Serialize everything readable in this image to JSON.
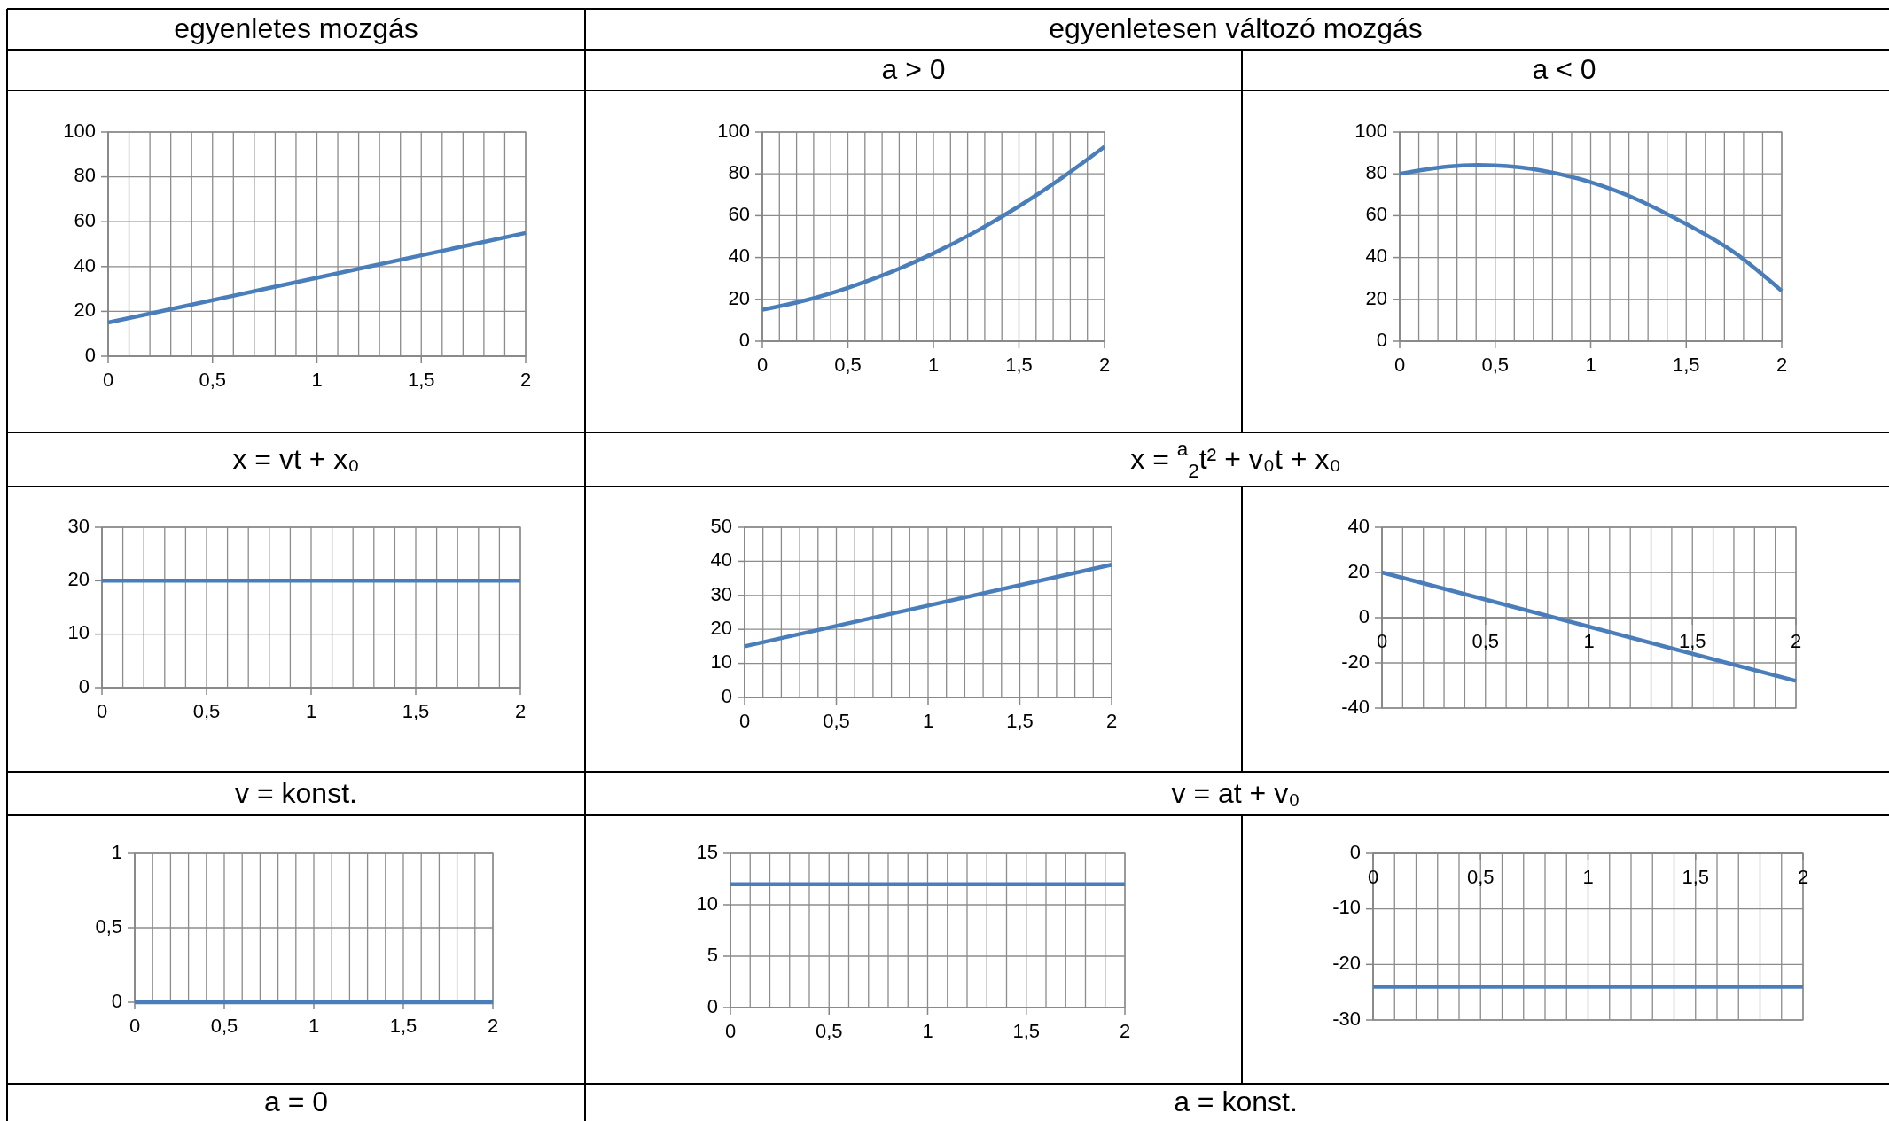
{
  "chart_data": [
    {
      "type": "line",
      "title": "egyenletes mozgás",
      "annotations": [
        "x = vt + x₀"
      ],
      "x": [
        0,
        0.5,
        1,
        1.5,
        2
      ],
      "series": [
        {
          "color": "#4a7ebb",
          "values": [
            15,
            25,
            35,
            45,
            55
          ]
        }
      ],
      "xlim": [
        0,
        2
      ],
      "xticks": [
        0,
        {
          "value": 0.1,
          "label": null
        },
        {
          "value": 0.2,
          "label": null
        },
        {
          "value": 0.3,
          "label": null
        },
        {
          "value": 0.4,
          "label": null
        },
        {
          "value": 0.5,
          "label": "0,5"
        },
        {
          "value": 0.6,
          "label": null
        },
        {
          "value": 0.7,
          "label": null
        },
        {
          "value": 0.8,
          "label": null
        },
        {
          "value": 0.9,
          "label": null
        },
        1,
        {
          "value": 1.1,
          "label": null
        },
        {
          "value": 1.2,
          "label": null
        },
        {
          "value": 1.3,
          "label": null
        },
        {
          "value": 1.4,
          "label": null
        },
        {
          "value": 1.5,
          "label": "1,5"
        },
        {
          "value": 1.6,
          "label": null
        },
        {
          "value": 1.7,
          "label": null
        },
        {
          "value": 1.8,
          "label": null
        },
        {
          "value": 1.9,
          "label": null
        },
        2
      ],
      "ylim": [
        0,
        100
      ],
      "yticks": [
        0,
        20,
        40,
        60,
        80,
        100
      ],
      "grid": true,
      "marker": "none",
      "line_style": "solid"
    },
    {
      "type": "line",
      "title": "a > 0",
      "annotations": [
        "egyenletesen változó mozgás",
        "x = $^{a}$$_{2}$t² + v₀t + x₀"
      ],
      "x": [
        0,
        0.25,
        0.5,
        0.75,
        1,
        1.25,
        1.5,
        1.75,
        2
      ],
      "series": [
        {
          "color": "#4a7ebb",
          "values": [
            15,
            19.5,
            25.5,
            33,
            42,
            52.5,
            64.5,
            78,
            93
          ]
        }
      ],
      "xlim": [
        0,
        2
      ],
      "xticks": [
        0,
        {
          "value": 0.1,
          "label": null
        },
        {
          "value": 0.2,
          "label": null
        },
        {
          "value": 0.3,
          "label": null
        },
        {
          "value": 0.4,
          "label": null
        },
        {
          "value": 0.5,
          "label": "0,5"
        },
        {
          "value": 0.6,
          "label": null
        },
        {
          "value": 0.7,
          "label": null
        },
        {
          "value": 0.8,
          "label": null
        },
        {
          "value": 0.9,
          "label": null
        },
        1,
        {
          "value": 1.1,
          "label": null
        },
        {
          "value": 1.2,
          "label": null
        },
        {
          "value": 1.3,
          "label": null
        },
        {
          "value": 1.4,
          "label": null
        },
        {
          "value": 1.5,
          "label": "1,5"
        },
        {
          "value": 1.6,
          "label": null
        },
        {
          "value": 1.7,
          "label": null
        },
        {
          "value": 1.8,
          "label": null
        },
        {
          "value": 1.9,
          "label": null
        },
        2
      ],
      "ylim": [
        0,
        100
      ],
      "yticks": [
        0,
        20,
        40,
        60,
        80,
        100
      ],
      "grid": true,
      "marker": "none",
      "line_style": "solid"
    },
    {
      "type": "line",
      "title": "a < 0",
      "x": [
        0,
        0.25,
        0.5,
        0.75,
        1,
        1.25,
        1.5,
        1.75,
        2
      ],
      "series": [
        {
          "color": "#4a7ebb",
          "values": [
            80,
            83.5,
            84,
            81.5,
            76,
            67.5,
            56,
            42.5,
            24
          ]
        }
      ],
      "xlim": [
        0,
        2
      ],
      "xticks": [
        0,
        {
          "value": 0.1,
          "label": null
        },
        {
          "value": 0.2,
          "label": null
        },
        {
          "value": 0.3,
          "label": null
        },
        {
          "value": 0.4,
          "label": null
        },
        {
          "value": 0.5,
          "label": "0,5"
        },
        {
          "value": 0.6,
          "label": null
        },
        {
          "value": 0.7,
          "label": null
        },
        {
          "value": 0.8,
          "label": null
        },
        {
          "value": 0.9,
          "label": null
        },
        1,
        {
          "value": 1.1,
          "label": null
        },
        {
          "value": 1.2,
          "label": null
        },
        {
          "value": 1.3,
          "label": null
        },
        {
          "value": 1.4,
          "label": null
        },
        {
          "value": 1.5,
          "label": "1,5"
        },
        {
          "value": 1.6,
          "label": null
        },
        {
          "value": 1.7,
          "label": null
        },
        {
          "value": 1.8,
          "label": null
        },
        {
          "value": 1.9,
          "label": null
        },
        2
      ],
      "ylim": [
        0,
        100
      ],
      "yticks": [
        0,
        20,
        40,
        60,
        80,
        100
      ],
      "grid": true,
      "marker": "none",
      "line_style": "solid"
    },
    {
      "type": "line",
      "annotations": [
        "v = konst."
      ],
      "x": [
        0,
        2
      ],
      "series": [
        {
          "color": "#4a7ebb",
          "values": [
            20,
            20
          ]
        }
      ],
      "xlim": [
        0,
        2
      ],
      "xticks": [
        0,
        {
          "value": 0.1,
          "label": null
        },
        {
          "value": 0.2,
          "label": null
        },
        {
          "value": 0.3,
          "label": null
        },
        {
          "value": 0.4,
          "label": null
        },
        {
          "value": 0.5,
          "label": "0,5"
        },
        {
          "value": 0.6,
          "label": null
        },
        {
          "value": 0.7,
          "label": null
        },
        {
          "value": 0.8,
          "label": null
        },
        {
          "value": 0.9,
          "label": null
        },
        1,
        {
          "value": 1.1,
          "label": null
        },
        {
          "value": 1.2,
          "label": null
        },
        {
          "value": 1.3,
          "label": null
        },
        {
          "value": 1.4,
          "label": null
        },
        {
          "value": 1.5,
          "label": "1,5"
        },
        {
          "value": 1.6,
          "label": null
        },
        {
          "value": 1.7,
          "label": null
        },
        {
          "value": 1.8,
          "label": null
        },
        {
          "value": 1.9,
          "label": null
        },
        2
      ],
      "ylim": [
        0,
        30
      ],
      "yticks": [
        0,
        10,
        20,
        30
      ],
      "grid": true,
      "marker": "none",
      "line_style": "solid"
    },
    {
      "type": "line",
      "annotations": [
        "v = at + v₀"
      ],
      "x": [
        0,
        2
      ],
      "series": [
        {
          "color": "#4a7ebb",
          "values": [
            15,
            39
          ]
        }
      ],
      "xlim": [
        0,
        2
      ],
      "xticks": [
        0,
        {
          "value": 0.1,
          "label": null
        },
        {
          "value": 0.2,
          "label": null
        },
        {
          "value": 0.3,
          "label": null
        },
        {
          "value": 0.4,
          "label": null
        },
        {
          "value": 0.5,
          "label": "0,5"
        },
        {
          "value": 0.6,
          "label": null
        },
        {
          "value": 0.7,
          "label": null
        },
        {
          "value": 0.8,
          "label": null
        },
        {
          "value": 0.9,
          "label": null
        },
        1,
        {
          "value": 1.1,
          "label": null
        },
        {
          "value": 1.2,
          "label": null
        },
        {
          "value": 1.3,
          "label": null
        },
        {
          "value": 1.4,
          "label": null
        },
        {
          "value": 1.5,
          "label": "1,5"
        },
        {
          "value": 1.6,
          "label": null
        },
        {
          "value": 1.7,
          "label": null
        },
        {
          "value": 1.8,
          "label": null
        },
        {
          "value": 1.9,
          "label": null
        },
        2
      ],
      "ylim": [
        0,
        50
      ],
      "yticks": [
        0,
        10,
        20,
        30,
        40,
        50
      ],
      "grid": true,
      "marker": "none",
      "line_style": "solid"
    },
    {
      "type": "line",
      "x": [
        0,
        2
      ],
      "series": [
        {
          "color": "#4a7ebb",
          "values": [
            20,
            -28
          ]
        }
      ],
      "xlim": [
        0,
        2
      ],
      "xticks": [
        0,
        {
          "value": 0.1,
          "label": null
        },
        {
          "value": 0.2,
          "label": null
        },
        {
          "value": 0.3,
          "label": null
        },
        {
          "value": 0.4,
          "label": null
        },
        {
          "value": 0.5,
          "label": "0,5"
        },
        {
          "value": 0.6,
          "label": null
        },
        {
          "value": 0.7,
          "label": null
        },
        {
          "value": 0.8,
          "label": null
        },
        {
          "value": 0.9,
          "label": null
        },
        1,
        {
          "value": 1.1,
          "label": null
        },
        {
          "value": 1.2,
          "label": null
        },
        {
          "value": 1.3,
          "label": null
        },
        {
          "value": 1.4,
          "label": null
        },
        {
          "value": 1.5,
          "label": "1,5"
        },
        {
          "value": 1.6,
          "label": null
        },
        {
          "value": 1.7,
          "label": null
        },
        {
          "value": 1.8,
          "label": null
        },
        {
          "value": 1.9,
          "label": null
        },
        2
      ],
      "ylim": [
        -40,
        40
      ],
      "yticks": [
        -40,
        -20,
        0,
        20,
        40
      ],
      "grid": true,
      "marker": "none",
      "line_style": "solid"
    },
    {
      "type": "line",
      "annotations": [
        "a = 0"
      ],
      "x": [
        0,
        2
      ],
      "series": [
        {
          "color": "#4a7ebb",
          "values": [
            0,
            0
          ]
        }
      ],
      "xlim": [
        0,
        2
      ],
      "xticks": [
        0,
        {
          "value": 0.1,
          "label": null
        },
        {
          "value": 0.2,
          "label": null
        },
        {
          "value": 0.3,
          "label": null
        },
        {
          "value": 0.4,
          "label": null
        },
        {
          "value": 0.5,
          "label": "0,5"
        },
        {
          "value": 0.6,
          "label": null
        },
        {
          "value": 0.7,
          "label": null
        },
        {
          "value": 0.8,
          "label": null
        },
        {
          "value": 0.9,
          "label": null
        },
        1,
        {
          "value": 1.1,
          "label": null
        },
        {
          "value": 1.2,
          "label": null
        },
        {
          "value": 1.3,
          "label": null
        },
        {
          "value": 1.4,
          "label": null
        },
        {
          "value": 1.5,
          "label": "1,5"
        },
        {
          "value": 1.6,
          "label": null
        },
        {
          "value": 1.7,
          "label": null
        },
        {
          "value": 1.8,
          "label": null
        },
        {
          "value": 1.9,
          "label": null
        },
        2
      ],
      "ylim": [
        0,
        1
      ],
      "yticks": [
        0,
        {
          "value": 0.5,
          "label": "0,5"
        },
        1
      ],
      "grid": true,
      "marker": "none",
      "line_style": "solid"
    },
    {
      "type": "line",
      "annotations": [
        "a = konst."
      ],
      "x": [
        0,
        2
      ],
      "series": [
        {
          "color": "#4a7ebb",
          "values": [
            12,
            12
          ]
        }
      ],
      "xlim": [
        0,
        2
      ],
      "xticks": [
        0,
        {
          "value": 0.1,
          "label": null
        },
        {
          "value": 0.2,
          "label": null
        },
        {
          "value": 0.3,
          "label": null
        },
        {
          "value": 0.4,
          "label": null
        },
        {
          "value": 0.5,
          "label": "0,5"
        },
        {
          "value": 0.6,
          "label": null
        },
        {
          "value": 0.7,
          "label": null
        },
        {
          "value": 0.8,
          "label": null
        },
        {
          "value": 0.9,
          "label": null
        },
        1,
        {
          "value": 1.1,
          "label": null
        },
        {
          "value": 1.2,
          "label": null
        },
        {
          "value": 1.3,
          "label": null
        },
        {
          "value": 1.4,
          "label": null
        },
        {
          "value": 1.5,
          "label": "1,5"
        },
        {
          "value": 1.6,
          "label": null
        },
        {
          "value": 1.7,
          "label": null
        },
        {
          "value": 1.8,
          "label": null
        },
        {
          "value": 1.9,
          "label": null
        },
        2
      ],
      "ylim": [
        0,
        15
      ],
      "yticks": [
        0,
        5,
        10,
        15
      ],
      "grid": true,
      "marker": "none",
      "line_style": "solid"
    },
    {
      "type": "line",
      "x": [
        0,
        2
      ],
      "series": [
        {
          "color": "#4a7ebb",
          "values": [
            -24,
            -24
          ]
        }
      ],
      "xlim": [
        0,
        2
      ],
      "xticks": [
        0,
        {
          "value": 0.1,
          "label": null
        },
        {
          "value": 0.2,
          "label": null
        },
        {
          "value": 0.3,
          "label": null
        },
        {
          "value": 0.4,
          "label": null
        },
        {
          "value": 0.5,
          "label": "0,5"
        },
        {
          "value": 0.6,
          "label": null
        },
        {
          "value": 0.7,
          "label": null
        },
        {
          "value": 0.8,
          "label": null
        },
        {
          "value": 0.9,
          "label": null
        },
        1,
        {
          "value": 1.1,
          "label": null
        },
        {
          "value": 1.2,
          "label": null
        },
        {
          "value": 1.3,
          "label": null
        },
        {
          "value": 1.4,
          "label": null
        },
        {
          "value": 1.5,
          "label": "1,5"
        },
        {
          "value": 1.6,
          "label": null
        },
        {
          "value": 1.7,
          "label": null
        },
        {
          "value": 1.8,
          "label": null
        },
        {
          "value": 1.9,
          "label": null
        },
        2
      ],
      "ylim": [
        -30,
        0
      ],
      "yticks": [
        -30,
        -20,
        -10,
        0
      ],
      "grid": true,
      "marker": "none",
      "line_style": "solid"
    }
  ]
}
